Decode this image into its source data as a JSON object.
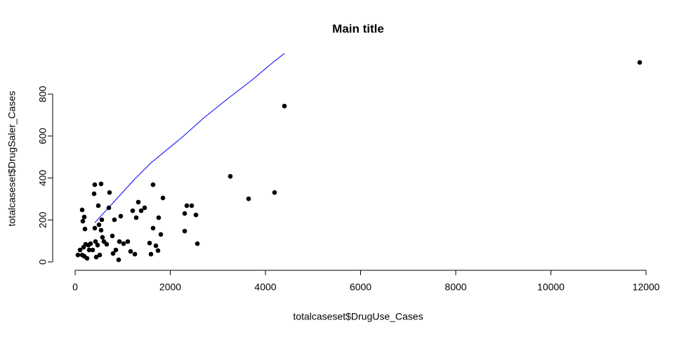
{
  "chart_data": {
    "type": "scatter",
    "title": "Main title",
    "x_label": "totalcaseset$DrugUse_Cases",
    "y_label": "totalcaseset$DrugSaler_Cases",
    "x": [
      11867,
      4399,
      3262,
      4192,
      3646,
      2303,
      2347,
      2450,
      2539,
      2303,
      2569,
      1845,
      1638,
      1756,
      1801,
      1461,
      1388,
      1328,
      1284,
      1210,
      1638,
      1565,
      1697,
      1742,
      1594,
      1107,
      1018,
      1166,
      1255,
      959,
      930,
      856,
      915,
      797,
      782,
      826,
      709,
      723,
      664,
      605,
      561,
      413,
      546,
      487,
      502,
      546,
      575,
      399,
      413,
      428,
      472,
      517,
      443,
      148,
      192,
      162,
      207,
      177,
      221,
      280,
      295,
      325,
      59,
      103,
      192,
      251,
      148,
      369
    ],
    "values": [
      951,
      743,
      408,
      331,
      301,
      231,
      268,
      268,
      224,
      147,
      87,
      305,
      368,
      211,
      131,
      258,
      244,
      285,
      211,
      244,
      161,
      90,
      77,
      54,
      37,
      97,
      87,
      50,
      37,
      218,
      97,
      57,
      10,
      40,
      124,
      201,
      258,
      331,
      84,
      97,
      201,
      368,
      372,
      268,
      177,
      151,
      117,
      325,
      161,
      97,
      80,
      33,
      23,
      248,
      214,
      194,
      157,
      70,
      84,
      80,
      57,
      87,
      33,
      57,
      27,
      17,
      33,
      57
    ],
    "color": "#000000",
    "line": {
      "x": [
        413,
        782,
        1225,
        1594,
        2258,
        2701,
        3218,
        3734,
        4103,
        4399
      ],
      "values": [
        187,
        278,
        388,
        472,
        596,
        686,
        780,
        870,
        941,
        994
      ],
      "color": "#0000ff"
    },
    "xlim": [
      -472,
      12295
    ],
    "ylim": [
      -40,
      1031
    ],
    "xticks": [
      0,
      2000,
      4000,
      6000,
      8000,
      10000,
      12000
    ],
    "yticks": [
      0,
      200,
      400,
      600,
      800
    ]
  }
}
